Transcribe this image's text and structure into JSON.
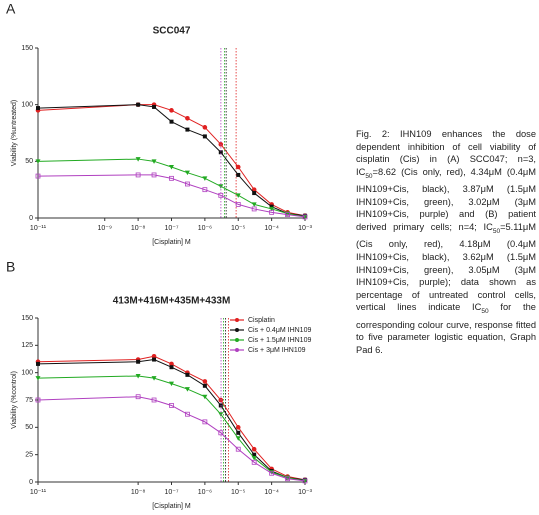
{
  "panels": [
    {
      "label": "A",
      "chart_data": {
        "type": "scatter",
        "title": "SCC047",
        "x_label": "[Cisplatin] M",
        "y_label": "Viability (%untreated)",
        "xscale": "log",
        "xlim": [
          1e-11,
          0.001
        ],
        "xticks": [
          {
            "value": 1e-11,
            "label": "10⁻¹¹"
          },
          {
            "value": 1e-09,
            "label": "10⁻⁹"
          },
          {
            "value": 1e-08,
            "label": "10⁻⁸"
          },
          {
            "value": 1e-07,
            "label": "10⁻⁷"
          },
          {
            "value": 1e-06,
            "label": "10⁻⁶"
          },
          {
            "value": 1e-05,
            "label": "10⁻⁵"
          },
          {
            "value": 0.0001,
            "label": "10⁻⁴"
          },
          {
            "value": 0.001,
            "label": "10⁻³"
          }
        ],
        "ylim": [
          0,
          150
        ],
        "yticks": [
          0,
          50,
          100,
          150
        ],
        "x": [
          1e-11,
          1e-08,
          3e-08,
          1e-07,
          3e-07,
          1e-06,
          3e-06,
          1e-05,
          3e-05,
          0.0001,
          0.0003,
          0.001
        ],
        "series": [
          {
            "color": "#e02020",
            "marker": "circle",
            "ic50": 8.62e-06,
            "values": [
              95,
              100,
              100,
              95,
              88,
              80,
              65,
              45,
              25,
              12,
              5,
              2
            ]
          },
          {
            "color": "#111111",
            "marker": "square",
            "ic50": 4.34e-06,
            "values": [
              97,
              100,
              98,
              85,
              78,
              72,
              58,
              38,
              22,
              10,
              4,
              2
            ]
          },
          {
            "color": "#22aa22",
            "marker": "triangle",
            "ic50": 3.87e-06,
            "values": [
              50,
              52,
              50,
              45,
              40,
              35,
              28,
              20,
              12,
              8,
              4,
              1
            ]
          },
          {
            "color": "#b040c0",
            "marker": "open-square",
            "ic50": 3.02e-06,
            "values": [
              37,
              38,
              38,
              35,
              30,
              25,
              20,
              12,
              8,
              5,
              3,
              1
            ]
          }
        ]
      }
    },
    {
      "label": "B",
      "chart_data": {
        "type": "scatter",
        "title": "413M+416M+435M+433M",
        "x_label": "[Cisplatin] M",
        "y_label": "Viability (%control)",
        "xscale": "log",
        "xlim": [
          1e-11,
          0.001
        ],
        "legend": "upper right",
        "xticks": [
          {
            "value": 1e-11,
            "label": "10⁻¹¹"
          },
          {
            "value": 1e-08,
            "label": "10⁻⁸"
          },
          {
            "value": 1e-07,
            "label": "10⁻⁷"
          },
          {
            "value": 1e-06,
            "label": "10⁻⁶"
          },
          {
            "value": 1e-05,
            "label": "10⁻⁵"
          },
          {
            "value": 0.0001,
            "label": "10⁻⁴"
          },
          {
            "value": 0.001,
            "label": "10⁻³"
          }
        ],
        "ylim": [
          0,
          150
        ],
        "yticks": [
          0,
          25,
          50,
          75,
          100,
          125,
          150
        ],
        "x": [
          1e-11,
          1e-08,
          3e-08,
          1e-07,
          3e-07,
          1e-06,
          3e-06,
          1e-05,
          3e-05,
          0.0001,
          0.0003,
          0.001
        ],
        "series": [
          {
            "name": "Cisplatin",
            "color": "#e02020",
            "marker": "circle",
            "ic50": 5.11e-06,
            "values": [
              110,
              112,
              115,
              108,
              100,
              92,
              75,
              50,
              30,
              12,
              5,
              2
            ]
          },
          {
            "name": "Cis + 0.4μM IHN109",
            "color": "#111111",
            "marker": "square",
            "ic50": 4.18e-06,
            "values": [
              108,
              110,
              112,
              105,
              98,
              88,
              70,
              45,
              25,
              10,
              4,
              2
            ]
          },
          {
            "name": "Cis + 1.5μM IHN109",
            "color": "#22aa22",
            "marker": "triangle",
            "ic50": 3.62e-06,
            "values": [
              95,
              97,
              95,
              90,
              85,
              78,
              62,
              40,
              22,
              9,
              4,
              1
            ]
          },
          {
            "name": "Cis + 3μM IHN109",
            "color": "#b040c0",
            "marker": "open-square",
            "ic50": 3.05e-06,
            "values": [
              75,
              78,
              75,
              70,
              62,
              55,
              45,
              30,
              18,
              8,
              3,
              1
            ]
          }
        ]
      }
    }
  ],
  "caption": [
    {
      "text": "Fig. 2: IHN109 enhances the dose dependent inhibition of cell viability of cisplatin (Cis) in (A) SCC047; n=3, IC"
    },
    {
      "sub": "50"
    },
    {
      "text": "=8.62 (Cis only, red), 4.34μM (0.4μM IHN109+Cis, black), 3.87μM (1.5μM IHN109+Cis, green), 3.02μM (3μM IHN109+Cis, purple) and (B) patient derived primary cells; n=4; IC"
    },
    {
      "sub": "50"
    },
    {
      "text": "=5.11μM (Cis only, red), 4.18μM (0.4μM IHN109+Cis, black), 3.62μM (1.5μM IHN109+Cis, green), 3.05μM (3μM IHN109+Cis, purple); data shown as percentage of untreated control cells, vertical lines indicate IC"
    },
    {
      "sub": "50"
    },
    {
      "text": " for the corresponding colour curve, response fitted to five parameter logistic equation, Graph Pad 6."
    }
  ]
}
